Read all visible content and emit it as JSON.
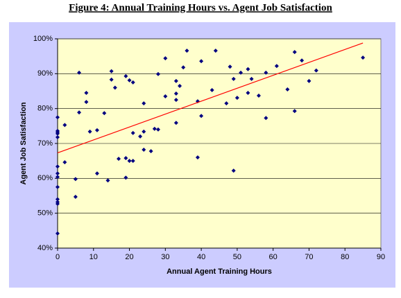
{
  "chart_data": {
    "type": "scatter",
    "title": "Figure 4: Annual Training Hours vs. Agent Job Satisfaction",
    "x_label": "Annual Agent Training Hours",
    "y_label": "Agent Job Satisfaction",
    "color": "#000080",
    "x": [
      0,
      0,
      0,
      0,
      0,
      0,
      0,
      0,
      0,
      0,
      0,
      0,
      0,
      2,
      2,
      5,
      5,
      6,
      6,
      8,
      8,
      9,
      11,
      11,
      13,
      14,
      15,
      15,
      16,
      17,
      19,
      19,
      19,
      20,
      20,
      21,
      21,
      21,
      23,
      24,
      24,
      24,
      26,
      27,
      28,
      28,
      30,
      30,
      33,
      33,
      33,
      33,
      34,
      35,
      36,
      39,
      39,
      40,
      40,
      43,
      44,
      47,
      48,
      49,
      49,
      50,
      51,
      53,
      53,
      54,
      56,
      58,
      58,
      61,
      64,
      66,
      66,
      68,
      70,
      72,
      85
    ],
    "values": [
      77.5,
      73.6,
      72.8,
      71.8,
      63.4,
      61.4,
      60.4,
      57.5,
      54,
      53.2,
      52.7,
      44.2,
      73.2,
      75.3,
      64.6,
      59.8,
      54.7,
      90.3,
      78.9,
      84.5,
      81.9,
      73.4,
      73.8,
      61.4,
      78.7,
      59.4,
      90.7,
      88.3,
      86,
      65.6,
      89.3,
      65.8,
      60.2,
      88.1,
      65,
      87.5,
      73,
      65,
      72,
      81.5,
      73.4,
      68.2,
      67.8,
      74.2,
      89.9,
      74,
      94.4,
      83.5,
      84.3,
      82.5,
      75.9,
      87.9,
      86.5,
      91.8,
      96.6,
      82.1,
      66,
      93.6,
      77.9,
      85.3,
      96.6,
      81.5,
      92,
      88.5,
      62.2,
      83.1,
      90.3,
      91.3,
      84.5,
      88.5,
      83.7,
      90.3,
      77.3,
      92.2,
      85.5,
      96.2,
      79.3,
      93.8,
      87.9,
      90.9,
      94.6
    ],
    "trendline": {
      "x": [
        0,
        85
      ],
      "values": [
        67.3,
        98.8
      ],
      "color": "#ff0000"
    },
    "xlim": [
      0,
      90
    ],
    "xticks": [
      0,
      10,
      20,
      30,
      40,
      50,
      60,
      70,
      80,
      90
    ],
    "ylim": [
      40,
      100
    ],
    "yticks": [
      {
        "value": 40,
        "label": "40%"
      },
      {
        "value": 50,
        "label": "50%"
      },
      {
        "value": 60,
        "label": "60%"
      },
      {
        "value": 70,
        "label": "70%"
      },
      {
        "value": 80,
        "label": "80%"
      },
      {
        "value": 90,
        "label": "90%"
      },
      {
        "value": 100,
        "label": "100%"
      }
    ],
    "grid": true
  }
}
